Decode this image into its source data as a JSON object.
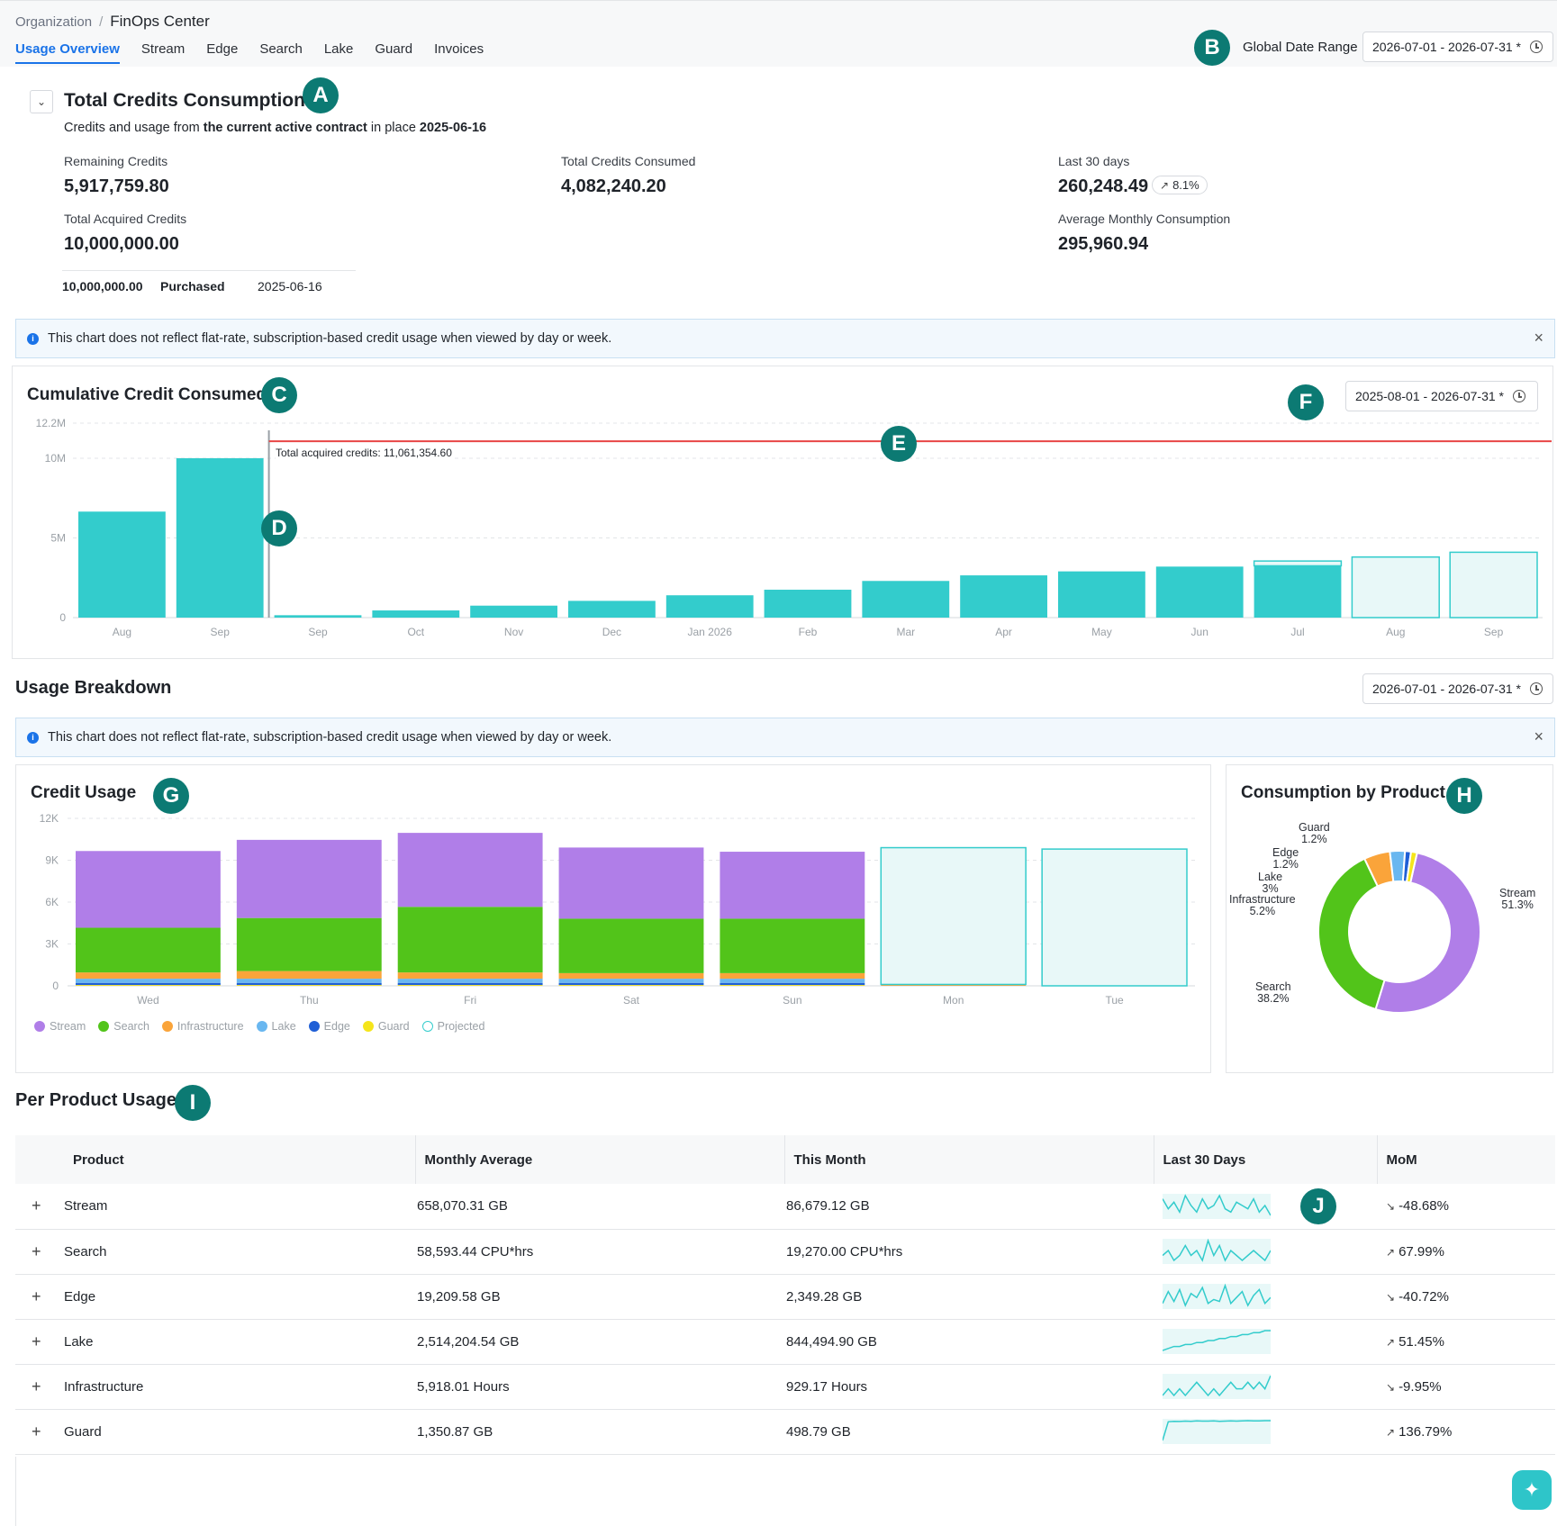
{
  "breadcrumb": {
    "parent": "Organization",
    "current": "FinOps Center"
  },
  "tabs": [
    {
      "label": "Usage Overview",
      "active": true
    },
    {
      "label": "Stream",
      "active": false
    },
    {
      "label": "Edge",
      "active": false
    },
    {
      "label": "Search",
      "active": false
    },
    {
      "label": "Lake",
      "active": false
    },
    {
      "label": "Guard",
      "active": false
    },
    {
      "label": "Invoices",
      "active": false
    }
  ],
  "markers": [
    "A",
    "B",
    "C",
    "D",
    "E",
    "F",
    "G",
    "H",
    "I",
    "J"
  ],
  "global_date": {
    "label": "Global Date Range",
    "value": "2026-07-01 - 2026-07-31 *"
  },
  "credits": {
    "title": "Total Credits Consumption",
    "sub_prefix": "Credits and usage from ",
    "sub_bold": "the current active contract",
    "sub_mid": " in place ",
    "sub_date": "2025-06-16",
    "remaining_label": "Remaining Credits",
    "remaining_value": "5,917,759.80",
    "acquired_label": "Total Acquired Credits",
    "acquired_value": "10,000,000.00",
    "consumed_label": "Total Credits Consumed",
    "consumed_value": "4,082,240.20",
    "last30_label": "Last 30 days",
    "last30_value": "260,248.49",
    "last30_change": "8.1%",
    "avg_label": "Average Monthly Consumption",
    "avg_value": "295,960.94",
    "purchase_amount": "10,000,000.00",
    "purchase_type": "Purchased",
    "purchase_date": "2025-06-16"
  },
  "banner_text": "This chart does not reflect flat-rate, subscription-based credit usage when viewed by day or week.",
  "cumulative": {
    "title": "Cumulative Credit Consumed",
    "date_range": "2025-08-01 - 2026-07-31 *",
    "threshold_label": "Total acquired credits: 11,061,354.60"
  },
  "breakdown": {
    "title": "Usage Breakdown",
    "date_range": "2026-07-01 - 2026-07-31 *",
    "credit_usage_title": "Credit Usage",
    "donut_title": "Consumption by Product"
  },
  "legend": [
    "Stream",
    "Search",
    "Infrastructure",
    "Lake",
    "Edge",
    "Guard",
    "Projected"
  ],
  "colors": {
    "teal": "#33cccc",
    "teal_projected": "#e8f8f8",
    "stream": "#b07ee8",
    "search": "#52c41a",
    "infrastructure": "#faa43a",
    "lake": "#69b7f0",
    "edge": "#1f5fd6",
    "guard": "#f5e51b",
    "threshold": "#e84545",
    "marker": "#0c7a73"
  },
  "chart_data": [
    {
      "type": "bar",
      "title": "Cumulative Credit Consumed",
      "categories": [
        "Aug",
        "Sep",
        "Sep",
        "Oct",
        "Nov",
        "Dec",
        "Jan 2026",
        "Feb",
        "Mar",
        "Apr",
        "May",
        "Jun",
        "Jul",
        "Aug",
        "Sep"
      ],
      "values": [
        6650000,
        10000000,
        150000,
        450000,
        750000,
        1050000,
        1400000,
        1750000,
        2300000,
        2650000,
        2900000,
        3200000,
        3250000,
        3800000,
        4100000
      ],
      "projected_from_index": 13,
      "projected_outline_jul": 3550000,
      "ylim": [
        0,
        12200000
      ],
      "yticks": [
        0,
        5000000,
        10000000,
        12200000
      ],
      "ytick_labels": [
        "0",
        "5M",
        "10M",
        "12.2M"
      ],
      "threshold": 11061354.6,
      "contract_divider_after_index": 1
    },
    {
      "type": "bar",
      "title": "Credit Usage",
      "categories": [
        "Wed",
        "Thu",
        "Fri",
        "Sat",
        "Sun",
        "Mon",
        "Tue"
      ],
      "series": [
        {
          "name": "Guard",
          "values": [
            60,
            60,
            60,
            60,
            60,
            0,
            0
          ]
        },
        {
          "name": "Edge",
          "values": [
            150,
            150,
            150,
            150,
            150,
            0,
            0
          ]
        },
        {
          "name": "Lake",
          "values": [
            300,
            300,
            300,
            300,
            300,
            0,
            0
          ]
        },
        {
          "name": "Infrastructure",
          "values": [
            450,
            550,
            450,
            400,
            400,
            100,
            0
          ]
        },
        {
          "name": "Search",
          "values": [
            3200,
            3800,
            4700,
            3900,
            3900,
            0,
            0
          ]
        },
        {
          "name": "Stream",
          "values": [
            5500,
            5600,
            5300,
            5100,
            4800,
            0,
            0
          ]
        },
        {
          "name": "Projected",
          "values": [
            0,
            0,
            0,
            0,
            0,
            9800,
            9800
          ]
        }
      ],
      "ylim": [
        0,
        12000
      ],
      "ytick_labels": [
        "0",
        "3K",
        "6K",
        "9K",
        "12K"
      ]
    },
    {
      "type": "pie",
      "title": "Consumption by Product",
      "categories": [
        "Stream",
        "Search",
        "Infrastructure",
        "Lake",
        "Edge",
        "Guard"
      ],
      "values": [
        51.3,
        38.2,
        5.2,
        3,
        1.2,
        1.2
      ],
      "labels": [
        "51.3%",
        "38.2%",
        "5.2%",
        "3%",
        "1.2%",
        "1.2%"
      ]
    }
  ],
  "per_product": {
    "title": "Per Product Usage",
    "headers": [
      "Product",
      "Monthly Average",
      "This Month",
      "Last 30 Days",
      "MoM"
    ],
    "rows": [
      {
        "product": "Stream",
        "avg": "658,070.31 GB",
        "month": "86,679.12 GB",
        "mom": "-48.68%",
        "dir": "down",
        "spark": [
          8,
          5,
          7,
          4,
          9,
          6,
          4,
          8,
          5,
          6,
          9,
          5,
          4,
          7,
          6,
          5,
          8,
          4,
          6,
          3
        ]
      },
      {
        "product": "Search",
        "avg": "58,593.44 CPU*hrs",
        "month": "19,270.00 CPU*hrs",
        "mom": "67.99%",
        "dir": "up",
        "spark": [
          5,
          6,
          4,
          5,
          7,
          5,
          6,
          4,
          8,
          5,
          7,
          4,
          6,
          5,
          4,
          5,
          6,
          5,
          4,
          6
        ]
      },
      {
        "product": "Edge",
        "avg": "19,209.58 GB",
        "month": "2,349.28 GB",
        "mom": "-40.72%",
        "dir": "down",
        "spark": [
          3,
          9,
          4,
          10,
          2,
          8,
          6,
          11,
          3,
          5,
          4,
          12,
          3,
          6,
          9,
          2,
          7,
          10,
          3,
          6
        ]
      },
      {
        "product": "Lake",
        "avg": "2,514,204.54 GB",
        "month": "844,494.90 GB",
        "mom": "51.45%",
        "dir": "up",
        "spark": [
          6,
          6.1,
          6.2,
          6.2,
          6.3,
          6.3,
          6.4,
          6.4,
          6.5,
          6.5,
          6.6,
          6.6,
          6.7,
          6.7,
          6.8,
          6.8,
          6.9,
          6.9,
          7,
          7
        ]
      },
      {
        "product": "Infrastructure",
        "avg": "5,918.01 Hours",
        "month": "929.17 Hours",
        "mom": "-9.95%",
        "dir": "down",
        "spark": [
          5,
          6,
          5,
          6,
          5,
          6,
          7,
          6,
          5,
          6,
          5,
          6,
          7,
          6,
          6,
          7,
          6,
          7,
          6,
          8
        ]
      },
      {
        "product": "Guard",
        "avg": "1,350.87 GB",
        "month": "498.79 GB",
        "mom": "136.79%",
        "dir": "up",
        "spark": [
          0,
          9,
          9.2,
          9.1,
          9.3,
          9.2,
          9.4,
          9.3,
          9.3,
          9.4,
          9.2,
          9.3,
          9.4,
          9.3,
          9.4,
          9.5,
          9.4,
          9.4,
          9.5,
          9.5
        ]
      }
    ]
  }
}
